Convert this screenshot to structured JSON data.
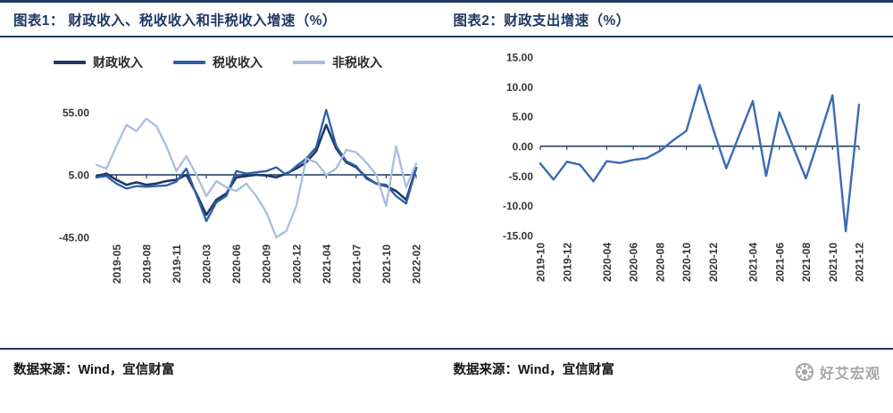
{
  "page": {
    "titles": {
      "left": "图表1： 财政收入、税收收入和非税收入增速（%）",
      "right": "图表2：财政支出增速（%）"
    },
    "sources": {
      "left": "数据来源：Wind，宜信财富",
      "right": "数据来源：Wind，宜信财富"
    },
    "logo": {
      "text": "好艾宏观",
      "icon": "gear-flower-icon",
      "color": "#a6a6a6"
    },
    "colors": {
      "accent_navy": "#1f3864"
    }
  },
  "chart_data": [
    {
      "id": "chart1",
      "type": "line",
      "title": "图表1： 财政收入、税收收入和非税收入增速（%）",
      "xlabel": "",
      "ylabel": "",
      "grid": false,
      "legend_position": "top",
      "ylim": [
        -45,
        55
      ],
      "axis_at": 5,
      "axis_color": "#17365d",
      "yticks": [
        {
          "value": 55,
          "label": "55.00"
        },
        {
          "value": 5,
          "label": "5.00"
        },
        {
          "value": -45,
          "label": "-45.00"
        }
      ],
      "categories": [
        "2019-03",
        "2019-04",
        "2019-05",
        "2019-06",
        "2019-07",
        "2019-08",
        "2019-09",
        "2019-10",
        "2019-11",
        "2019-12",
        "2020-02",
        "2020-03",
        "2020-04",
        "2020-05",
        "2020-06",
        "2020-07",
        "2020-08",
        "2020-09",
        "2020-10",
        "2020-11",
        "2020-12",
        "2021-02",
        "2021-03",
        "2021-04",
        "2021-05",
        "2021-06",
        "2021-07",
        "2021-08",
        "2021-09",
        "2021-10",
        "2021-11",
        "2021-12",
        "2022-02"
      ],
      "xticks": [
        "2019-05",
        "2019-08",
        "2019-11",
        "2020-03",
        "2020-06",
        "2020-09",
        "2020-12",
        "2021-04",
        "2021-07",
        "2021-10",
        "2022-02"
      ],
      "series": [
        {
          "name": "财政收入",
          "color": "#1f3864",
          "width": 2.6,
          "values": [
            4,
            6,
            1,
            -3,
            -1,
            -3,
            -2,
            0,
            1,
            5,
            -10,
            -27,
            -15,
            -10,
            3,
            4,
            5,
            4.5,
            3,
            6,
            10,
            15,
            24,
            45,
            26,
            15,
            11,
            3,
            -2,
            -4,
            -8,
            -15,
            10.5
          ]
        },
        {
          "name": "税收收入",
          "color": "#2e5fa7",
          "width": 2.3,
          "values": [
            3,
            4,
            -2,
            -6,
            -4,
            -4.5,
            -4,
            -3.5,
            -0.5,
            10,
            -11,
            -32,
            -17,
            -12,
            8,
            6,
            7,
            8,
            11,
            5,
            12,
            18,
            27,
            57,
            28,
            16,
            12,
            2,
            -2,
            -3,
            -12,
            -18,
            10
          ]
        },
        {
          "name": "非税收入",
          "color": "#a9bede",
          "width": 2.3,
          "values": [
            13,
            10,
            28,
            45,
            40,
            50,
            44,
            28,
            8,
            20,
            5,
            -12,
            0,
            -5,
            -8,
            -2,
            -12,
            -25,
            -45,
            -40,
            -20,
            18,
            15,
            5,
            10,
            25,
            23,
            15,
            5,
            -20,
            28,
            -5,
            14
          ]
        }
      ],
      "layout": {
        "margins": {
          "l": 100,
          "r": 22,
          "t": 42,
          "b": 80
        }
      }
    },
    {
      "id": "chart2",
      "type": "line",
      "title": "图表2：财政支出增速（%）",
      "xlabel": "",
      "ylabel": "",
      "grid": false,
      "legend_position": "none",
      "ylim": [
        -15,
        15
      ],
      "axis_at": 0,
      "axis_color": "#17365d",
      "yticks": [
        {
          "value": 15,
          "label": "15.00"
        },
        {
          "value": 10,
          "label": "10.00"
        },
        {
          "value": 5,
          "label": "5.00"
        },
        {
          "value": 0,
          "label": "0.00"
        },
        {
          "value": -5,
          "label": "-5.00"
        },
        {
          "value": -10,
          "label": "-10.00"
        },
        {
          "value": -15,
          "label": "-15.00"
        }
      ],
      "categories": [
        "2019-10",
        "2019-11",
        "2019-12",
        "2020-02",
        "2020-03",
        "2020-04",
        "2020-05",
        "2020-06",
        "2020-07",
        "2020-08",
        "2020-09",
        "2020-10",
        "2020-11",
        "2020-12",
        "2021-02",
        "2021-03",
        "2021-04",
        "2021-05",
        "2021-06",
        "2021-07",
        "2021-08",
        "2021-09",
        "2021-10",
        "2021-11",
        "2021-12"
      ],
      "xticks": [
        "2019-10",
        "2019-12",
        "2020-04",
        "2020-06",
        "2020-08",
        "2020-10",
        "2020-12",
        "2021-04",
        "2021-06",
        "2021-08",
        "2021-10",
        "2021-12"
      ],
      "series": [
        {
          "name": "财政支出增速",
          "color": "#3a6bb5",
          "width": 2.4,
          "values": [
            -2.9,
            -5.6,
            -2.6,
            -3.1,
            -5.9,
            -2.5,
            -2.8,
            -2.3,
            -2.0,
            -0.8,
            1.0,
            2.6,
            10.3,
            3.0,
            -3.7,
            2.0,
            7.6,
            -5.0,
            5.7,
            0.1,
            -5.4,
            1.5,
            8.6,
            -14.3,
            7.0
          ]
        }
      ],
      "layout": {
        "margins": {
          "l": 105,
          "r": 18,
          "t": 22,
          "b": 80
        }
      }
    }
  ]
}
